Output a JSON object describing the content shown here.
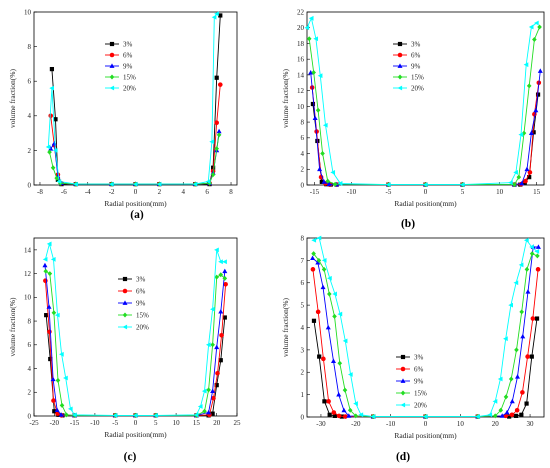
{
  "figure": {
    "xlabel": "Radial position(mm)",
    "ylabel": "volume fraction(%)",
    "legend_placement": "center-right of plot area",
    "series_colors": {
      "3%": "#000000",
      "6%": "#ff0000",
      "9%": "#0000ff",
      "15%": "#22dd22",
      "20%": "#00ffff"
    },
    "markers": {
      "3%": "square",
      "6%": "circle",
      "9%": "triangle-up",
      "15%": "diamond",
      "20%": "triangle-left"
    }
  },
  "chart_data": [
    {
      "panel": "(a)",
      "type": "line",
      "xlabel": "Radial position(mm)",
      "ylabel": "volume fraction(%)",
      "xlim": [
        -8.5,
        8.5
      ],
      "ylim": [
        0,
        10
      ],
      "xticks": [
        -8,
        -6,
        -4,
        -2,
        0,
        2,
        4,
        6,
        8
      ],
      "yticks": [
        0,
        2,
        4,
        6,
        8,
        10
      ],
      "legend": [
        "3%",
        "6%",
        "9%",
        "15%",
        "20%"
      ],
      "series": [
        {
          "name": "3%",
          "x": [
            -7,
            -6.7,
            -6.5,
            -6.2,
            -5,
            -2,
            0,
            2,
            5,
            6.2,
            6.5,
            6.8,
            7.1
          ],
          "y": [
            6.7,
            3.8,
            0.3,
            0.05,
            0.05,
            0.05,
            0.05,
            0.05,
            0.05,
            0.05,
            1.0,
            6.2,
            9.8
          ]
        },
        {
          "name": "6%",
          "x": [
            -7.1,
            -6.8,
            -6.5,
            -6.2,
            -5,
            -2,
            0,
            2,
            5,
            6.2,
            6.5,
            6.8,
            7.1
          ],
          "y": [
            4.0,
            2.3,
            0.6,
            0.1,
            0.05,
            0.05,
            0.05,
            0.05,
            0.05,
            0.1,
            0.8,
            3.6,
            5.8
          ]
        },
        {
          "name": "9%",
          "x": [
            -7.1,
            -6.8,
            -6.5,
            -6.2,
            -5,
            -2,
            0,
            2,
            5,
            6.2,
            6.5,
            6.8,
            7.0
          ],
          "y": [
            2.1,
            2.4,
            0.5,
            0.1,
            0.05,
            0.05,
            0.05,
            0.05,
            0.05,
            0.1,
            0.7,
            2.0,
            3.1
          ]
        },
        {
          "name": "15%",
          "x": [
            -7.2,
            -6.9,
            -6.6,
            -6.3,
            -5,
            -2,
            0,
            2,
            5,
            6.2,
            6.5,
            6.8,
            7.0
          ],
          "y": [
            1.9,
            1.0,
            0.4,
            0.1,
            0.05,
            0.05,
            0.05,
            0.05,
            0.05,
            0.1,
            0.6,
            2.1,
            2.9
          ]
        },
        {
          "name": "20%",
          "x": [
            -7.3,
            -7.0,
            -6.7,
            -6.4,
            -5,
            -2,
            0,
            2,
            5,
            6.1,
            6.4,
            6.6,
            6.8
          ],
          "y": [
            2.2,
            5.6,
            2.0,
            0.2,
            0.05,
            0.05,
            0.05,
            0.05,
            0.05,
            0.2,
            2.5,
            9.7,
            9.9
          ]
        }
      ]
    },
    {
      "panel": "(b)",
      "type": "line",
      "xlabel": "Radial position(mm)",
      "ylabel": "volume fraction(%)",
      "xlim": [
        -16,
        16
      ],
      "ylim": [
        0,
        22
      ],
      "xticks": [
        -15,
        -10,
        -5,
        0,
        5,
        10,
        15
      ],
      "yticks": [
        0,
        2,
        4,
        6,
        8,
        10,
        12,
        14,
        16,
        18,
        20,
        22
      ],
      "legend": [
        "3%",
        "6%",
        "9%",
        "15%",
        "20%"
      ],
      "series": [
        {
          "name": "3%",
          "x": [
            -15.2,
            -14.6,
            -14,
            -13.4,
            -12.8,
            -12,
            -5,
            0,
            5,
            12,
            12.8,
            13.4,
            14,
            14.6,
            15.2
          ],
          "y": [
            10.3,
            5.6,
            0.4,
            0.1,
            0.05,
            0.05,
            0.05,
            0.05,
            0.05,
            0.05,
            0.05,
            0.3,
            1.0,
            6.7,
            11.5
          ]
        },
        {
          "name": "6%",
          "x": [
            -15.3,
            -14.7,
            -14.1,
            -13.5,
            -12.9,
            -12,
            -5,
            0,
            5,
            12,
            12.9,
            13.5,
            14.1,
            14.7,
            15.3
          ],
          "y": [
            12.4,
            6.8,
            1.0,
            0.2,
            0.05,
            0.05,
            0.05,
            0.05,
            0.05,
            0.05,
            0.1,
            0.5,
            1.6,
            9.0,
            13.0
          ]
        },
        {
          "name": "9%",
          "x": [
            -15.5,
            -14.9,
            -14.3,
            -13.7,
            -13,
            -12,
            -5,
            0,
            5,
            12,
            13,
            13.7,
            14.3,
            14.9,
            15.5
          ],
          "y": [
            14.3,
            8.5,
            2.0,
            0.4,
            0.1,
            0.05,
            0.05,
            0.05,
            0.05,
            0.05,
            0.2,
            2.0,
            6.6,
            9.5,
            14.5
          ]
        },
        {
          "name": "15%",
          "x": [
            -15.7,
            -15.1,
            -14.5,
            -13.9,
            -13.2,
            -12.2,
            -5,
            0,
            5,
            12,
            12.6,
            13.3,
            14,
            14.7,
            15.4
          ],
          "y": [
            18.6,
            14.3,
            9.5,
            4.0,
            0.5,
            0.1,
            0.05,
            0.05,
            0.05,
            0.05,
            1.0,
            6.6,
            12.6,
            18.5,
            20.1
          ]
        },
        {
          "name": "20%",
          "x": [
            -16,
            -15.4,
            -14.8,
            -14.2,
            -13.5,
            -12.5,
            -11.5,
            -5,
            0,
            5,
            11.5,
            12.2,
            12.9,
            13.6,
            14.3,
            15
          ],
          "y": [
            20.0,
            21.2,
            18.6,
            13.9,
            7.6,
            1.6,
            0.2,
            0.05,
            0.05,
            0.05,
            0.3,
            1.6,
            6.4,
            15.3,
            20.1,
            20.6
          ]
        }
      ]
    },
    {
      "panel": "(c)",
      "type": "line",
      "xlabel": "Radial position(mm)",
      "ylabel": "volume fraction(%)",
      "xlim": [
        -25,
        25
      ],
      "ylim": [
        0,
        15
      ],
      "xticks": [
        -25,
        -20,
        -15,
        -10,
        -5,
        0,
        5,
        10,
        15,
        20,
        25
      ],
      "yticks": [
        0,
        2,
        4,
        6,
        8,
        10,
        12,
        14
      ],
      "legend": [
        "3%",
        "6%",
        "9%",
        "15%",
        "20%"
      ],
      "series": [
        {
          "name": "3%",
          "x": [
            -22,
            -21,
            -20,
            -19,
            -18,
            -15,
            -5,
            0,
            5,
            15,
            18,
            19,
            20,
            21,
            22
          ],
          "y": [
            8.5,
            4.8,
            0.4,
            0.1,
            0.05,
            0.05,
            0.05,
            0.05,
            0.05,
            0.05,
            0.05,
            0.2,
            2.6,
            4.7,
            8.3
          ]
        },
        {
          "name": "6%",
          "x": [
            -22.2,
            -21.2,
            -20.2,
            -19.2,
            -18.2,
            -15,
            -5,
            0,
            5,
            15,
            18.2,
            19.2,
            20.2,
            21.2,
            22.2
          ],
          "y": [
            11.4,
            7.1,
            1.3,
            0.2,
            0.05,
            0.05,
            0.05,
            0.05,
            0.05,
            0.05,
            0.1,
            1.5,
            3.6,
            6.8,
            11.1
          ]
        },
        {
          "name": "9%",
          "x": [
            -22.3,
            -21.3,
            -20.3,
            -19.3,
            -18.3,
            -15,
            -5,
            0,
            5,
            15,
            18,
            19,
            20,
            21,
            22
          ],
          "y": [
            12.7,
            9.2,
            3.1,
            0.5,
            0.1,
            0.05,
            0.05,
            0.05,
            0.05,
            0.05,
            0.3,
            2.1,
            5.8,
            8.8,
            12.2
          ]
        },
        {
          "name": "15%",
          "x": [
            -22.1,
            -21.1,
            -20.1,
            -19.1,
            -18.1,
            -17,
            -15,
            -5,
            0,
            5,
            15,
            17,
            18,
            19,
            20,
            21,
            22
          ],
          "y": [
            12.2,
            12.0,
            8.7,
            3.0,
            0.9,
            0.1,
            0.05,
            0.05,
            0.05,
            0.05,
            0.05,
            0.4,
            2.2,
            6.0,
            11.7,
            11.9,
            11.6
          ]
        },
        {
          "name": "20%",
          "x": [
            -22.2,
            -21.2,
            -20.2,
            -19.2,
            -18.2,
            -17.2,
            -16,
            -15,
            -5,
            0,
            5,
            15,
            16,
            17,
            18,
            19,
            20,
            21,
            22
          ],
          "y": [
            13.2,
            14.5,
            13.2,
            8.5,
            5.2,
            3.2,
            0.6,
            0.1,
            0.05,
            0.05,
            0.05,
            0.1,
            0.8,
            2.1,
            6.0,
            9.0,
            14.0,
            13.0,
            13.0
          ]
        }
      ]
    },
    {
      "panel": "(d)",
      "type": "line",
      "xlabel": "Radial position(mm)",
      "ylabel": "volume fraction(%)",
      "xlim": [
        -34,
        34
      ],
      "ylim": [
        0,
        8
      ],
      "xticks": [
        -30,
        -20,
        -10,
        0,
        10,
        20,
        30
      ],
      "yticks": [
        0,
        1,
        2,
        3,
        4,
        5,
        6,
        7,
        8
      ],
      "legend": [
        "3%",
        "6%",
        "9%",
        "15%",
        "20%"
      ],
      "series": [
        {
          "name": "3%",
          "x": [
            -32,
            -30.5,
            -29,
            -27.5,
            -26,
            -24,
            -15,
            0,
            15,
            24,
            26,
            27.5,
            29,
            30.5,
            32
          ],
          "y": [
            4.3,
            2.7,
            0.7,
            0.1,
            0.05,
            0.02,
            0.02,
            0.02,
            0.02,
            0.02,
            0.05,
            0.1,
            0.6,
            2.7,
            4.4
          ]
        },
        {
          "name": "6%",
          "x": [
            -32.3,
            -30.8,
            -29.3,
            -27.8,
            -26.3,
            -24.8,
            -23,
            -15,
            0,
            15,
            23,
            24.8,
            26.3,
            27.8,
            29.3,
            30.8,
            32.3
          ],
          "y": [
            6.6,
            4.7,
            2.6,
            0.7,
            0.2,
            0.05,
            0.02,
            0.02,
            0.02,
            0.02,
            0.05,
            0.1,
            0.3,
            1.1,
            2.7,
            4.4,
            6.6
          ]
        },
        {
          "name": "9%",
          "x": [
            -32.4,
            -30.9,
            -29.4,
            -27.9,
            -26.4,
            -24.9,
            -23.4,
            -22,
            -15,
            0,
            15,
            22,
            23.4,
            24.9,
            26.4,
            27.9,
            29.4,
            30.9,
            32.4
          ],
          "y": [
            7.1,
            6.9,
            5.8,
            4.0,
            2.5,
            1.0,
            0.3,
            0.05,
            0.02,
            0.02,
            0.02,
            0.05,
            0.2,
            0.7,
            1.8,
            3.6,
            5.6,
            7.6,
            7.6
          ]
        },
        {
          "name": "15%",
          "x": [
            -32.1,
            -30.6,
            -29.1,
            -27.6,
            -26.1,
            -24.6,
            -23.1,
            -21.6,
            -20,
            -15,
            0,
            15,
            20,
            21.6,
            23.1,
            24.6,
            26.1,
            27.6,
            29.1,
            30.6,
            32.1
          ],
          "y": [
            7.3,
            7.0,
            6.6,
            5.5,
            4.5,
            2.4,
            1.2,
            0.3,
            0.05,
            0.02,
            0.02,
            0.02,
            0.05,
            0.3,
            0.9,
            1.7,
            3.0,
            4.7,
            6.6,
            7.3,
            7.2
          ]
        },
        {
          "name": "20%",
          "x": [
            -32,
            -30.5,
            -29,
            -27.5,
            -26,
            -24.5,
            -23,
            -21.5,
            -20,
            -18.5,
            -15,
            0,
            15,
            18.5,
            20,
            21.5,
            23,
            24.5,
            26,
            27.5,
            29,
            30.5,
            32
          ],
          "y": [
            7.9,
            8.0,
            7.0,
            6.2,
            5.5,
            4.6,
            3.4,
            1.9,
            0.6,
            0.1,
            0.02,
            0.02,
            0.02,
            0.1,
            0.7,
            1.7,
            3.5,
            5.0,
            6.0,
            6.8,
            7.9,
            7.6,
            7.4
          ]
        }
      ]
    }
  ]
}
